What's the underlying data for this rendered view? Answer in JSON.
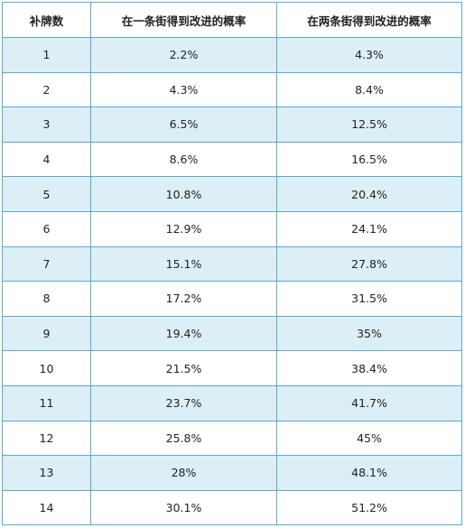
{
  "table": {
    "headers": [
      "补牌数",
      "在一条街得到改进的概率",
      "在两条街得到改进的概率"
    ],
    "rows": [
      [
        "1",
        "2.2%",
        "4.3%"
      ],
      [
        "2",
        "4.3%",
        "8.4%"
      ],
      [
        "3",
        "6.5%",
        "12.5%"
      ],
      [
        "4",
        "8.6%",
        "16.5%"
      ],
      [
        "5",
        "10.8%",
        "20.4%"
      ],
      [
        "6",
        "12.9%",
        "24.1%"
      ],
      [
        "7",
        "15.1%",
        "27.8%"
      ],
      [
        "8",
        "17.2%",
        "31.5%"
      ],
      [
        "9",
        "19.4%",
        "35%"
      ],
      [
        "10",
        "21.5%",
        "38.4%"
      ],
      [
        "11",
        "23.7%",
        "41.7%"
      ],
      [
        "12",
        "25.8%",
        "45%"
      ],
      [
        "13",
        "28%",
        "48.1%"
      ],
      [
        "14",
        "30.1%",
        "51.2%"
      ]
    ]
  },
  "colors": {
    "border": "#5fa8cf",
    "shaded_row": "#dceef6",
    "plain_row": "#ffffff"
  }
}
